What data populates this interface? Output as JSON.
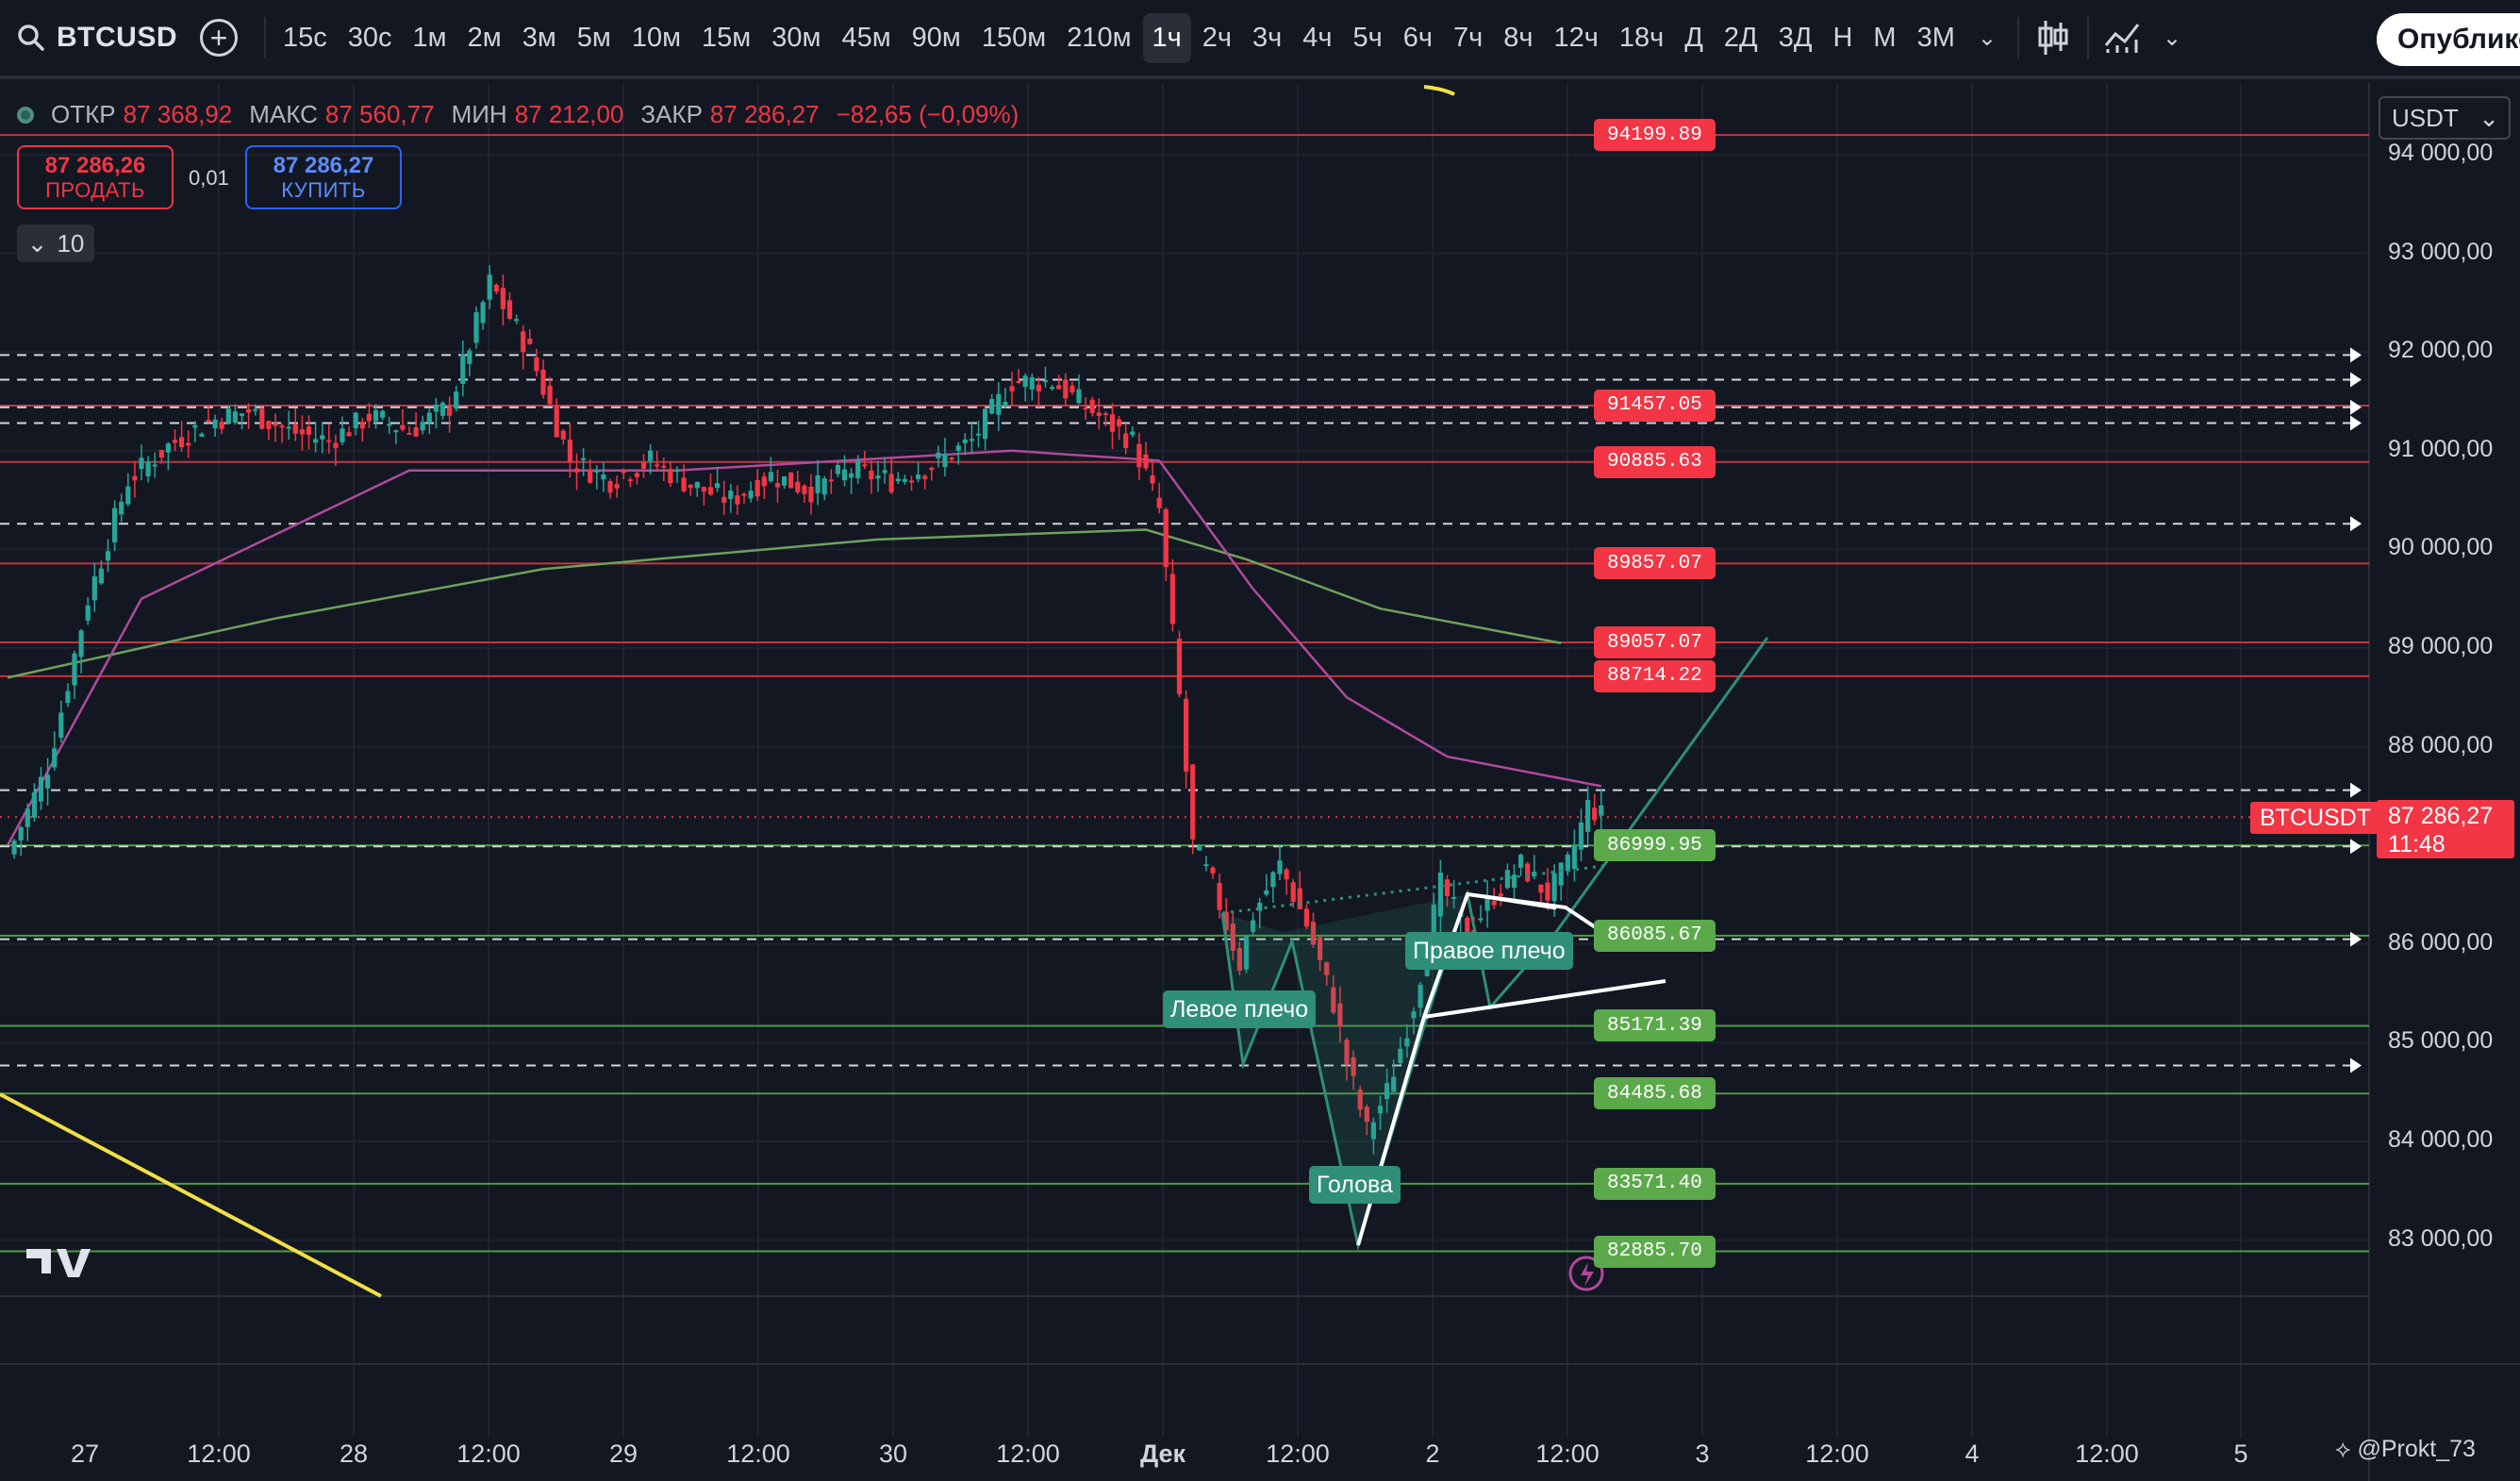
{
  "toolbar": {
    "symbol": "BTCUSD",
    "intervals": [
      "15с",
      "30с",
      "1м",
      "2м",
      "3м",
      "5м",
      "10м",
      "15м",
      "30м",
      "45м",
      "90м",
      "150м",
      "210м",
      "1ч",
      "2ч",
      "3ч",
      "4ч",
      "5ч",
      "6ч",
      "7ч",
      "8ч",
      "12ч",
      "18ч",
      "Д",
      "2Д",
      "3Д",
      "Н",
      "М",
      "3М"
    ],
    "active_interval": "1ч",
    "publish_label": "Опубликовать"
  },
  "legend": {
    "open_label": "ОТКР",
    "open": "87 368,92",
    "high_label": "МАКС",
    "high": "87 560,77",
    "low_label": "МИН",
    "low": "87 212,00",
    "close_label": "ЗАКР",
    "close": "87 286,27",
    "change": "−82,65 (−0,09%)"
  },
  "trade": {
    "sell_price": "87 286,26",
    "sell_label": "ПРОДАТЬ",
    "spread": "0,01",
    "buy_price": "87 286,27",
    "buy_label": "КУПИТЬ"
  },
  "indicators_collapse_count": "10",
  "currency": "USDT",
  "current_price": {
    "symbol": "BTCUSDT",
    "price": "87 286,27",
    "countdown": "11:48"
  },
  "pattern_labels": {
    "left_shoulder": "Левое плечо",
    "head": "Голова",
    "right_shoulder": "Правое плечо"
  },
  "watermark": "@Prokt_73",
  "colors": {
    "background": "#131722",
    "up": "#26a69a",
    "down": "#f23645",
    "resistance": "#f23645",
    "support": "#5ba94b",
    "trend": "#f0e046",
    "ma_fast": "#b04a9c",
    "ma_slow": "#6fa15b",
    "pattern": "#2f8f79"
  },
  "chart_data": {
    "type": "candlestick",
    "symbol": "BTCUSD",
    "timeframe": "1h",
    "y_axis": {
      "ticks": [
        "94 000,00",
        "93 000,00",
        "92 000,00",
        "91 000,00",
        "90 000,00",
        "89 000,00",
        "88 000,00",
        "87 000,00",
        "86 000,00",
        "85 000,00",
        "84 000,00",
        "83 000,00"
      ],
      "range": [
        82300,
        94300
      ]
    },
    "x_axis": {
      "ticks": [
        "27",
        "12:00",
        "28",
        "12:00",
        "29",
        "12:00",
        "30",
        "12:00",
        "Дек",
        "12:00",
        "2",
        "12:00",
        "3",
        "12:00",
        "4",
        "12:00",
        "5"
      ]
    },
    "resistance_levels": [
      "94199.89",
      "91457.05",
      "90885.63",
      "89857.07",
      "89057.07",
      "88714.22"
    ],
    "support_levels": [
      "86999.95",
      "86085.67",
      "85171.39",
      "84485.68",
      "83571.40",
      "82885.70"
    ],
    "dashed_levels": [
      91970,
      91720,
      91440,
      91280,
      90260,
      87560,
      86990,
      86050,
      84770
    ],
    "price_path": [
      [
        0,
        86900
      ],
      [
        6,
        87800
      ],
      [
        12,
        89500
      ],
      [
        18,
        90700
      ],
      [
        24,
        91050
      ],
      [
        30,
        91300
      ],
      [
        36,
        91400
      ],
      [
        42,
        91200
      ],
      [
        48,
        91100
      ],
      [
        54,
        91350
      ],
      [
        60,
        91200
      ],
      [
        66,
        91450
      ],
      [
        72,
        92700
      ],
      [
        78,
        92000
      ],
      [
        84,
        90900
      ],
      [
        90,
        90700
      ],
      [
        96,
        90900
      ],
      [
        102,
        90650
      ],
      [
        108,
        90500
      ],
      [
        114,
        90750
      ],
      [
        120,
        90600
      ],
      [
        126,
        90800
      ],
      [
        132,
        90700
      ],
      [
        138,
        90850
      ],
      [
        144,
        91100
      ],
      [
        150,
        91700
      ],
      [
        156,
        91700
      ],
      [
        162,
        91400
      ],
      [
        168,
        91100
      ],
      [
        172,
        90400
      ],
      [
        175,
        88500
      ],
      [
        177,
        87000
      ],
      [
        180,
        86600
      ],
      [
        184,
        85800
      ],
      [
        186,
        86300
      ],
      [
        190,
        86800
      ],
      [
        194,
        86200
      ],
      [
        198,
        85400
      ],
      [
        200,
        84800
      ],
      [
        203,
        84100
      ],
      [
        206,
        84500
      ],
      [
        210,
        85400
      ],
      [
        214,
        86600
      ],
      [
        218,
        86100
      ],
      [
        222,
        86500
      ],
      [
        226,
        86800
      ],
      [
        230,
        86500
      ],
      [
        233,
        86800
      ],
      [
        236,
        87400
      ],
      [
        238,
        87300
      ]
    ],
    "ma_fast": [
      [
        0,
        87000
      ],
      [
        20,
        89500
      ],
      [
        60,
        90800
      ],
      [
        100,
        90800
      ],
      [
        150,
        91000
      ],
      [
        172,
        90900
      ],
      [
        186,
        89600
      ],
      [
        200,
        88500
      ],
      [
        215,
        87900
      ],
      [
        238,
        87600
      ]
    ],
    "ma_slow": [
      [
        0,
        88700
      ],
      [
        40,
        89300
      ],
      [
        80,
        89800
      ],
      [
        130,
        90100
      ],
      [
        170,
        90200
      ],
      [
        185,
        89900
      ],
      [
        205,
        89400
      ],
      [
        232,
        89050
      ]
    ]
  }
}
